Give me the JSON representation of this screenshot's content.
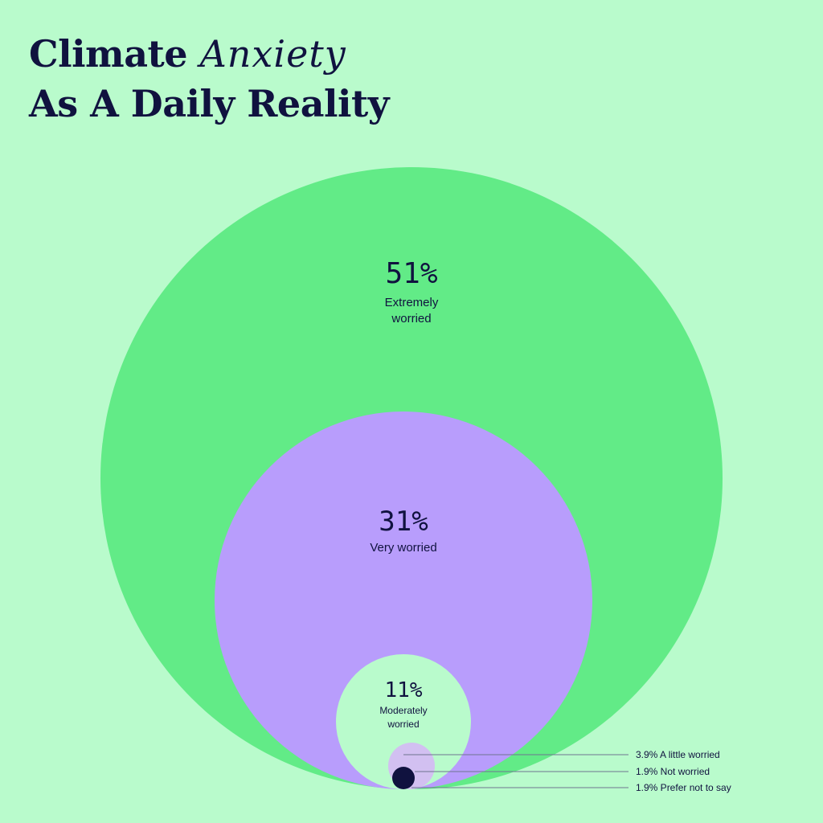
{
  "title": {
    "part1": "Climate",
    "part1_accent": "Anxiety",
    "line2": "As A Daily Reality"
  },
  "colors": {
    "background": "#b9fbcc",
    "extremely": "#62eb87",
    "very": "#b89dfc",
    "moderately": "#b9fbcc",
    "a_little": "#d2c0f1",
    "not": "#10123f",
    "text": "#10123f"
  },
  "chart_data": {
    "type": "nested-circles",
    "unit": "%",
    "series": [
      {
        "key": "extremely",
        "value": 51,
        "value_label": "51%",
        "label_lines": [
          "Extremely",
          "worried"
        ]
      },
      {
        "key": "very",
        "value": 31,
        "value_label": "31%",
        "label_lines": [
          "Very worried"
        ]
      },
      {
        "key": "moderately",
        "value": 11,
        "value_label": "11%",
        "label_lines": [
          "Moderately",
          "worried"
        ]
      },
      {
        "key": "a_little",
        "value": 3.9,
        "callout": "3.9% A little worried"
      },
      {
        "key": "not",
        "value": 1.9,
        "callout": "1.9% Not worried"
      },
      {
        "key": "prefer_not",
        "value": 1.9,
        "callout": "1.9% Prefer not to say"
      }
    ]
  }
}
